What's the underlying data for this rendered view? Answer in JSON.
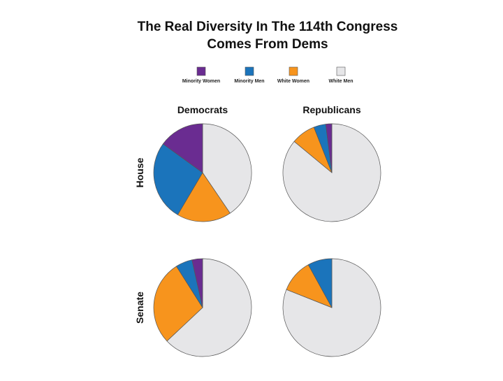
{
  "chart_data": {
    "type": "pie",
    "title_lines": [
      "The Real Diversity In The 114th Congress",
      "Comes From Dems"
    ],
    "legend": [
      {
        "label": "Minority Women",
        "color": "#6a2c91"
      },
      {
        "label": "Minority Men",
        "color": "#1b74bb"
      },
      {
        "label": "White Women",
        "color": "#f7941d"
      },
      {
        "label": "White Men",
        "color": "#e6e6e8"
      }
    ],
    "columns": [
      "Democrats",
      "Republicans"
    ],
    "rows": [
      "House",
      "Senate"
    ],
    "slice_order": [
      "White Men",
      "White Women",
      "Minority Men",
      "Minority Women"
    ],
    "pies": [
      {
        "row": "House",
        "column": "Democrats",
        "values": {
          "White Men": 40.5,
          "White Women": 18.0,
          "Minority Men": 26.5,
          "Minority Women": 15.0
        }
      },
      {
        "row": "House",
        "column": "Republicans",
        "values": {
          "White Men": 86.0,
          "White Women": 8.0,
          "Minority Men": 4.0,
          "Minority Women": 2.0
        }
      },
      {
        "row": "Senate",
        "column": "Democrats",
        "values": {
          "White Men": 63.0,
          "White Women": 28.0,
          "Minority Men": 5.5,
          "Minority Women": 3.5
        }
      },
      {
        "row": "Senate",
        "column": "Republicans",
        "values": {
          "White Men": 81.0,
          "White Women": 11.0,
          "Minority Men": 8.0,
          "Minority Women": 0.0
        }
      }
    ]
  }
}
